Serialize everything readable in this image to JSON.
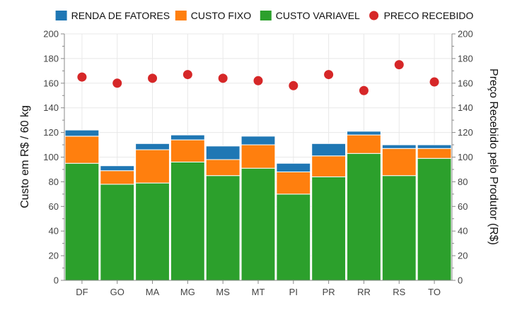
{
  "chart_data": {
    "type": "bar",
    "stacked": true,
    "categories": [
      "DF",
      "GO",
      "MA",
      "MG",
      "MS",
      "MT",
      "PI",
      "PR",
      "RR",
      "RS",
      "TO"
    ],
    "series": [
      {
        "name": "CUSTO VARIAVEL",
        "color": "#2ca02c",
        "values": [
          95,
          78,
          79,
          96,
          85,
          91,
          70,
          84,
          103,
          85,
          99
        ]
      },
      {
        "name": "CUSTO FIXO",
        "color": "#ff7f0e",
        "values": [
          22,
          11,
          27,
          18,
          13,
          19,
          18,
          17,
          15,
          22,
          8
        ]
      },
      {
        "name": "RENDA DE FATORES",
        "color": "#1f77b4",
        "values": [
          5,
          4,
          5,
          4,
          11,
          7,
          7,
          10,
          3,
          3,
          3
        ]
      }
    ],
    "points": {
      "name": "PRECO RECEBIDO",
      "color": "#d62728",
      "values": [
        165,
        160,
        164,
        167,
        164,
        162,
        158,
        167,
        154,
        175,
        161
      ]
    },
    "legend_order": [
      "RENDA DE FATORES",
      "CUSTO FIXO",
      "CUSTO VARIAVEL",
      "PRECO RECEBIDO"
    ],
    "legend_position": "top",
    "ylabel_left": "Custo em R$ / 60 kg",
    "ylabel_right": "Preço Recebido pelo Produtor (R$)",
    "ylim": [
      0,
      200
    ],
    "yticks": [
      "0",
      "20",
      "40",
      "60",
      "80",
      "100",
      "120",
      "140",
      "160",
      "180",
      "200"
    ],
    "grid": true
  }
}
